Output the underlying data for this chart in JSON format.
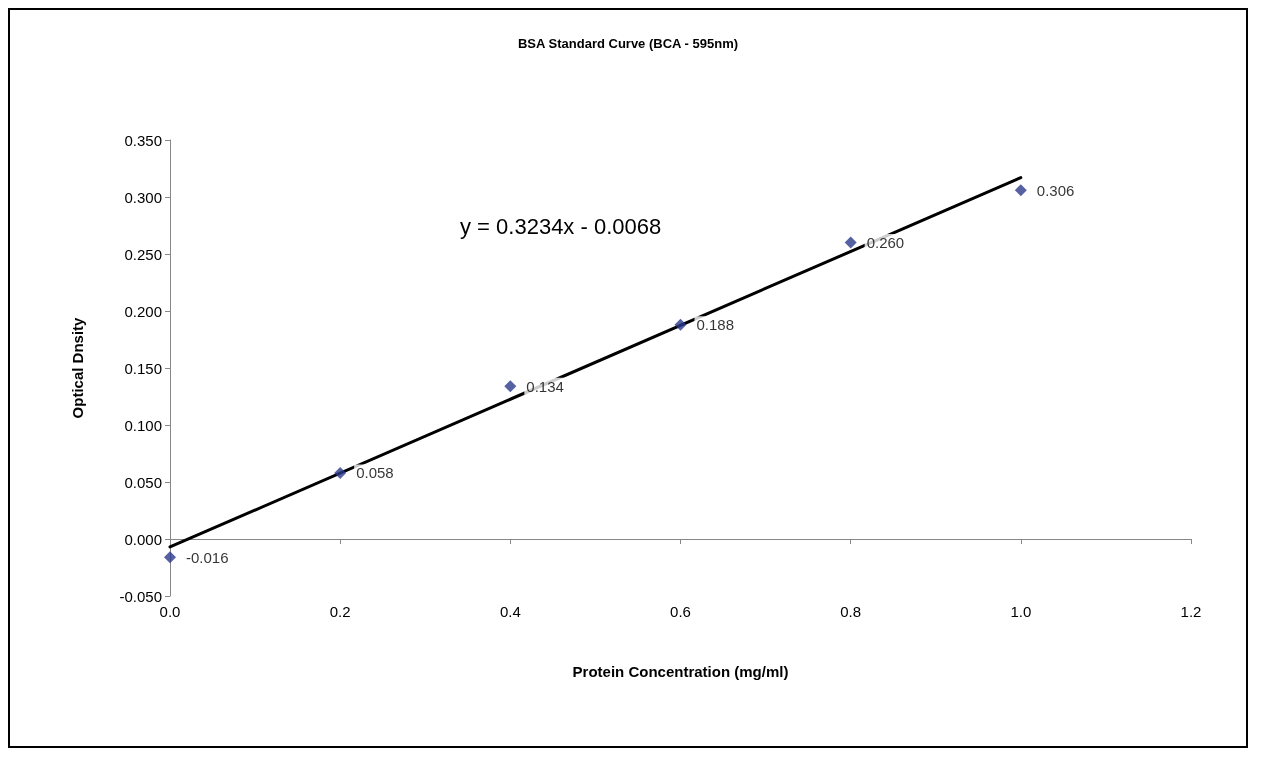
{
  "chart_data": {
    "type": "scatter",
    "title": "BSA Standard Curve (BCA - 595nm)",
    "xlabel": "Protein Concentration (mg/ml)",
    "ylabel": "Optical Dnsity",
    "x": [
      0,
      0.2,
      0.4,
      0.6,
      0.8,
      1.0
    ],
    "series": [
      {
        "color": "#2b3a8c",
        "marker": "diamond",
        "values": [
          -0.016,
          0.058,
          0.134,
          0.188,
          0.26,
          0.306
        ],
        "value_labels": [
          "-0.016",
          "0.058",
          "0.134",
          "0.188",
          "0.260",
          "0.306"
        ]
      },
      {
        "type": "line",
        "color": "#000000",
        "marker": "none",
        "line_style": "solid",
        "x": [
          0,
          1.0
        ],
        "values": [
          -0.007,
          0.317
        ]
      }
    ],
    "xlim": [
      0,
      1.2
    ],
    "xticks": [
      {
        "value": 0,
        "label": "0.0"
      },
      0.2,
      0.4,
      0.6,
      0.8,
      {
        "value": 1,
        "label": "1.0"
      },
      1.2
    ],
    "ylim": [
      -0.05,
      0.35
    ],
    "yticks": [
      {
        "value": -0.05,
        "label": "-0.050"
      },
      {
        "value": 0,
        "label": "0.000"
      },
      {
        "value": 0.05,
        "label": "0.050"
      },
      {
        "value": 0.1,
        "label": "0.100"
      },
      {
        "value": 0.15,
        "label": "0.150"
      },
      {
        "value": 0.2,
        "label": "0.200"
      },
      {
        "value": 0.25,
        "label": "0.250"
      },
      {
        "value": 0.3,
        "label": "0.300"
      },
      {
        "value": 0.35,
        "label": "0.350"
      }
    ],
    "annotations": [
      "y = 0.3234x - 0.0068"
    ]
  }
}
